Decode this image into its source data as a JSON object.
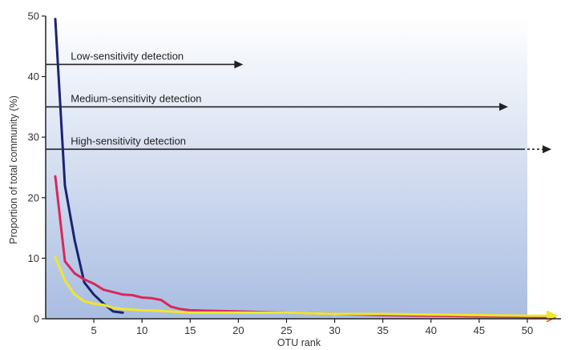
{
  "chart_data": {
    "type": "line",
    "xlabel": "OTU rank",
    "ylabel": "Proportion of total community (%)",
    "xlim": [
      0,
      50
    ],
    "ylim": [
      0,
      50
    ],
    "xticks": [
      5,
      10,
      15,
      20,
      25,
      30,
      35,
      40,
      45,
      50
    ],
    "yticks": [
      0,
      10,
      20,
      30,
      40,
      50
    ],
    "background": "vertical gradient, white at top to light blue at bottom; plot region ends at x=50",
    "colors": {
      "navy": "#1a2474",
      "red": "#d8285a",
      "yellow": "#f0e62a",
      "arrow": "#222222",
      "bg_top": "#ffffff",
      "bg_bottom": "#a9bde2"
    },
    "series": [
      {
        "color": "#1a2474",
        "x": [
          1,
          2,
          3,
          4,
          5,
          6,
          7,
          8
        ],
        "y": [
          49.5,
          22,
          13,
          6,
          4,
          2.5,
          1.2,
          1.0
        ]
      },
      {
        "color": "#d8285a",
        "x": [
          1,
          2,
          3,
          4,
          5,
          6,
          7,
          8,
          9,
          10,
          11,
          12,
          13,
          14,
          15,
          20,
          25,
          30,
          35,
          40,
          45,
          50,
          52
        ],
        "y": [
          23.5,
          9.5,
          7.5,
          6.5,
          5.8,
          4.8,
          4.4,
          4.0,
          3.9,
          3.5,
          3.4,
          3.1,
          2.0,
          1.6,
          1.4,
          1.2,
          1.0,
          0.8,
          0.6,
          0.5,
          0.4,
          0.3,
          0.2
        ]
      },
      {
        "color": "#f0e62a",
        "x": [
          1,
          2,
          3,
          4,
          5,
          6,
          7,
          8,
          10,
          12,
          14,
          15,
          20,
          25,
          30,
          35,
          40,
          45,
          50,
          52
        ],
        "y": [
          10.2,
          6.3,
          4.0,
          2.9,
          2.5,
          2.3,
          1.8,
          1.6,
          1.4,
          1.3,
          1.1,
          1.0,
          1.0,
          1.0,
          0.8,
          0.8,
          0.7,
          0.6,
          0.5,
          0.5
        ]
      }
    ],
    "annotations": [
      {
        "text": "Low-sensitivity detection",
        "y": 42,
        "x_start": 0,
        "x_end": 20.5,
        "style": "solid"
      },
      {
        "text": "Medium-sensitivity detection",
        "y": 35,
        "x_start": 0,
        "x_end": 48,
        "style": "solid"
      },
      {
        "text": "High-sensitivity detection",
        "y": 28,
        "x_start": 0,
        "x_end": 52.5,
        "style": "solid-then-dashed",
        "dash_from": 49.5
      }
    ]
  }
}
